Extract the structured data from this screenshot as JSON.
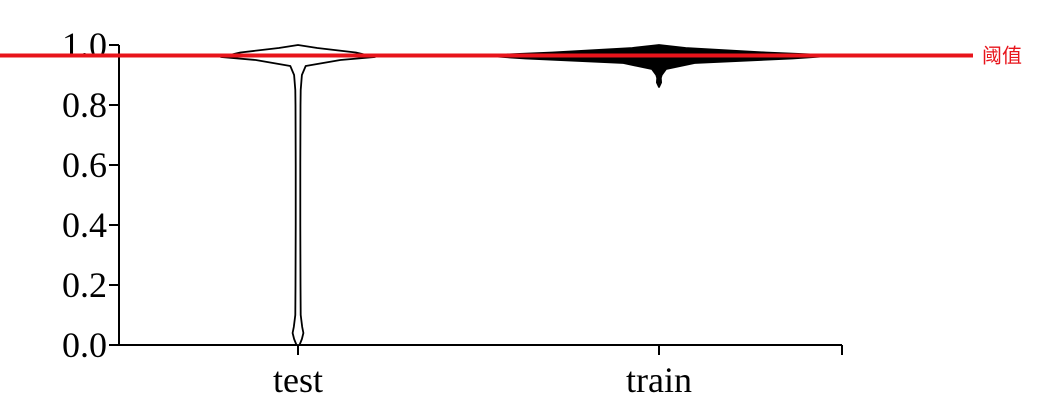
{
  "chart_data": {
    "type": "violin",
    "categories": [
      "test",
      "train"
    ],
    "ylim": [
      0,
      1
    ],
    "yticks": [
      "0.0",
      "0.2",
      "0.4",
      "0.6",
      "0.8",
      "1.0"
    ],
    "series": [
      {
        "category": "test",
        "fill": "#ffffff",
        "stroke": "#000000",
        "density": [
          [
            0.0,
            0.02
          ],
          [
            0.02,
            0.05
          ],
          [
            0.04,
            0.07
          ],
          [
            0.06,
            0.055
          ],
          [
            0.1,
            0.035
          ],
          [
            0.2,
            0.032
          ],
          [
            0.4,
            0.03
          ],
          [
            0.6,
            0.03
          ],
          [
            0.8,
            0.032
          ],
          [
            0.85,
            0.035
          ],
          [
            0.9,
            0.05
          ],
          [
            0.93,
            0.1
          ],
          [
            0.95,
            0.55
          ],
          [
            0.96,
            1.0
          ],
          [
            0.975,
            0.75
          ],
          [
            0.99,
            0.25
          ],
          [
            1.0,
            0.0
          ]
        ]
      },
      {
        "category": "train",
        "fill": "#000000",
        "stroke": "#000000",
        "density": [
          [
            0.86,
            0.0
          ],
          [
            0.875,
            0.012
          ],
          [
            0.89,
            0.01
          ],
          [
            0.9,
            0.015
          ],
          [
            0.92,
            0.04
          ],
          [
            0.94,
            0.2
          ],
          [
            0.955,
            0.75
          ],
          [
            0.965,
            1.0
          ],
          [
            0.975,
            0.6
          ],
          [
            0.99,
            0.15
          ],
          [
            1.0,
            0.0
          ]
        ]
      }
    ],
    "threshold": {
      "value": 0.965,
      "label": "阈值",
      "color": "#e8141b"
    }
  }
}
